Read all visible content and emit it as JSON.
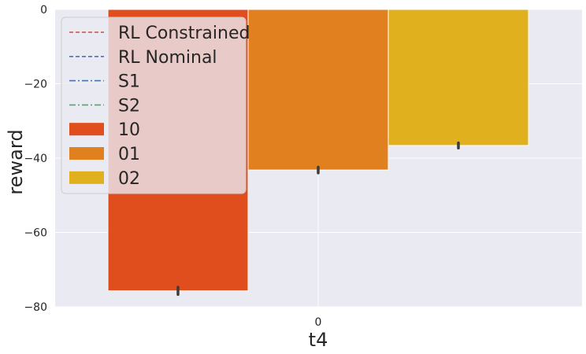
{
  "chart_data": {
    "type": "bar",
    "title": "",
    "xlabel": "t4",
    "ylabel": "reward",
    "categories": [
      "0"
    ],
    "ylim": [
      -80,
      0
    ],
    "yticks": [
      0,
      -20,
      -40,
      -60,
      -80
    ],
    "ytick_labels": [
      "0",
      "−20",
      "−40",
      "−60",
      "−80"
    ],
    "grid": true,
    "legend_position": "top-left",
    "series": [
      {
        "name": "10",
        "values": [
          -75.7
        ],
        "error": [
          1.0
        ],
        "color": "#e04e1e"
      },
      {
        "name": "01",
        "values": [
          -43.2
        ],
        "error": [
          0.8
        ],
        "color": "#e0801e"
      },
      {
        "name": "02",
        "values": [
          -36.6
        ],
        "error": [
          0.7
        ],
        "color": "#e0b01e"
      }
    ],
    "reference_lines": [
      {
        "name": "RL Constrained",
        "style": "dashed",
        "color": "#c44e52"
      },
      {
        "name": "RL Nominal",
        "style": "dashed",
        "color": "#4c72b0"
      },
      {
        "name": "S1",
        "style": "dashdot",
        "color": "#4c72b0"
      },
      {
        "name": "S2",
        "style": "dashdot",
        "color": "#55a868"
      }
    ]
  }
}
